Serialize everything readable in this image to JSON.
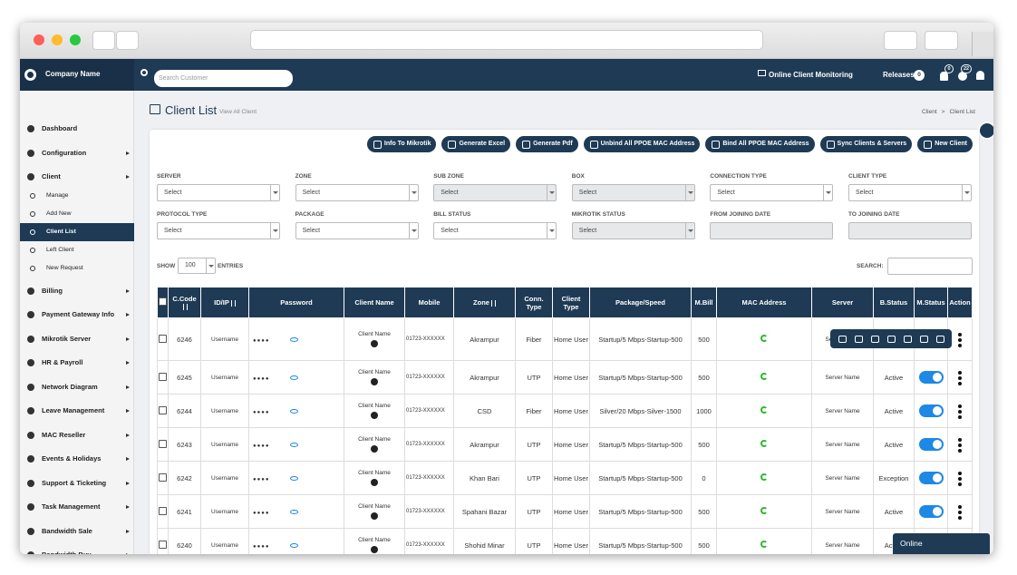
{
  "header": {
    "company": "Company Name",
    "search_placeholder": "Search Customer",
    "monitoring": "Online Client Monitoring",
    "releases": "Releases",
    "releases_count": "0",
    "notifications_count": "0",
    "info_count": "22"
  },
  "sidebar": [
    {
      "label": "Dashboard"
    },
    {
      "label": "Configuration",
      "arrow": true
    },
    {
      "label": "Client",
      "arrow": true,
      "children": [
        "Manage",
        "Add New",
        "Client List",
        "Left Client",
        "New Request"
      ],
      "active_child": 2
    },
    {
      "label": "Billing",
      "arrow": true
    },
    {
      "label": "Payment Gateway Info",
      "arrow": true
    },
    {
      "label": "Mikrotik Server",
      "arrow": true
    },
    {
      "label": "HR & Payroll",
      "arrow": true
    },
    {
      "label": "Network Diagram",
      "arrow": true
    },
    {
      "label": "Leave Management",
      "arrow": true
    },
    {
      "label": "MAC Reseller",
      "arrow": true
    },
    {
      "label": "Events & Holidays",
      "arrow": true
    },
    {
      "label": "Support & Ticketing",
      "arrow": true
    },
    {
      "label": "Task Management",
      "arrow": true
    },
    {
      "label": "Bandwidth Sale",
      "arrow": true
    },
    {
      "label": "Bandwidth Buy",
      "arrow": true
    }
  ],
  "page": {
    "title": "Client List",
    "subtitle": "View All Client",
    "breadcrumb": [
      "Client",
      ">",
      "Client List"
    ]
  },
  "buttons": [
    "Info To Mikrotik",
    "Generate Excel",
    "Generate Pdf",
    "Unbind All PPOE MAC Address",
    "Bind All PPOE MAC Address",
    "Sync Clients & Servers",
    "New Client"
  ],
  "filters": [
    {
      "label": "SERVER",
      "placeholder": "Select"
    },
    {
      "label": "ZONE",
      "placeholder": "Select"
    },
    {
      "label": "SUB ZONE",
      "placeholder": "Select",
      "disabled": true
    },
    {
      "label": "BOX",
      "placeholder": "Select",
      "disabled": true
    },
    {
      "label": "CONNECTION TYPE",
      "placeholder": "Select"
    },
    {
      "label": "CLIENT TYPE",
      "placeholder": "Select"
    },
    {
      "label": "PROTOCOL TYPE",
      "placeholder": "Select"
    },
    {
      "label": "PACKAGE",
      "placeholder": "Select"
    },
    {
      "label": "BILL STATUS",
      "placeholder": "Select"
    },
    {
      "label": "MIKROTIK STATUS",
      "placeholder": "Select",
      "disabled": true
    },
    {
      "label": "FROM JOINING DATE",
      "disabled": true
    },
    {
      "label": "TO JOINING DATE",
      "disabled": true
    }
  ],
  "length": {
    "show": "SHOW",
    "value": "100",
    "entries": "ENTRIES",
    "search": "SEARCH:"
  },
  "table": {
    "columns": [
      {
        "label": "C.Code",
        "sortable": true
      },
      {
        "label": "ID/IP",
        "sortable": true
      },
      {
        "label": "Password"
      },
      {
        "label": "Client Name"
      },
      {
        "label": "Mobile"
      },
      {
        "label": "Zone",
        "sortable": true
      },
      {
        "label": "Conn. Type"
      },
      {
        "label": "Client Type"
      },
      {
        "label": "Package/Speed"
      },
      {
        "label": "M.Bill"
      },
      {
        "label": "MAC Address"
      },
      {
        "label": "Server"
      },
      {
        "label": "B.Status"
      },
      {
        "label": "M.Status"
      },
      {
        "label": "Action"
      }
    ],
    "rows": [
      {
        "code": "6246",
        "id": "Username",
        "password": "●●●●",
        "name": "Client Name",
        "mobile": "01723-XXXXXX",
        "zone": "Akrampur",
        "conn": "Fiber",
        "type": "Home User",
        "package": "Startup/5 Mbps-Startup-500",
        "bill": "500",
        "server": "Server Name"
      },
      {
        "code": "6245",
        "id": "Username",
        "password": "●●●●",
        "name": "Client Name",
        "mobile": "01723-XXXXXX",
        "zone": "Akrampur",
        "conn": "UTP",
        "type": "Home User",
        "package": "Startup/5 Mbps-Startup-500",
        "bill": "500",
        "server": "Server Name",
        "status": "Active"
      },
      {
        "code": "6244",
        "id": "Username",
        "password": "●●●●",
        "name": "Client Name",
        "mobile": "01723-XXXXXX",
        "zone": "CSD",
        "conn": "Fiber",
        "type": "Home User",
        "package": "Silver/20 Mbps-Silver-1500",
        "bill": "1000",
        "server": "Server Name",
        "status": "Active"
      },
      {
        "code": "6243",
        "id": "Username",
        "password": "●●●●",
        "name": "Client Name",
        "mobile": "01723-XXXXXX",
        "zone": "Akrampur",
        "conn": "UTP",
        "type": "Home User",
        "package": "Startup/5 Mbps-Startup-500",
        "bill": "500",
        "server": "Server Name",
        "status": "Active"
      },
      {
        "code": "6242",
        "id": "Username",
        "password": "●●●●",
        "name": "Client Name",
        "mobile": "01723-XXXXXX",
        "zone": "Khan Bari",
        "conn": "UTP",
        "type": "Home User",
        "package": "Startup/5 Mbps-Startup-500",
        "bill": "0",
        "server": "Server Name",
        "status": "Exception"
      },
      {
        "code": "6241",
        "id": "Username",
        "password": "●●●●",
        "name": "Client Name",
        "mobile": "01723-XXXXXX",
        "zone": "Spahani Bazar",
        "conn": "UTP",
        "type": "Home User",
        "package": "Startup/5 Mbps-Startup-500",
        "bill": "500",
        "server": "Server Name",
        "status": "Active"
      },
      {
        "code": "6240",
        "id": "Username",
        "password": "●●●●",
        "name": "Client Name",
        "mobile": "01723-XXXXXX",
        "zone": "Shohid Minar",
        "conn": "UTP",
        "type": "Home User",
        "package": "Startup/5 Mbps-Startup-500",
        "bill": "500",
        "server": "Server Name",
        "status": "Active"
      }
    ]
  },
  "chat": "Online"
}
